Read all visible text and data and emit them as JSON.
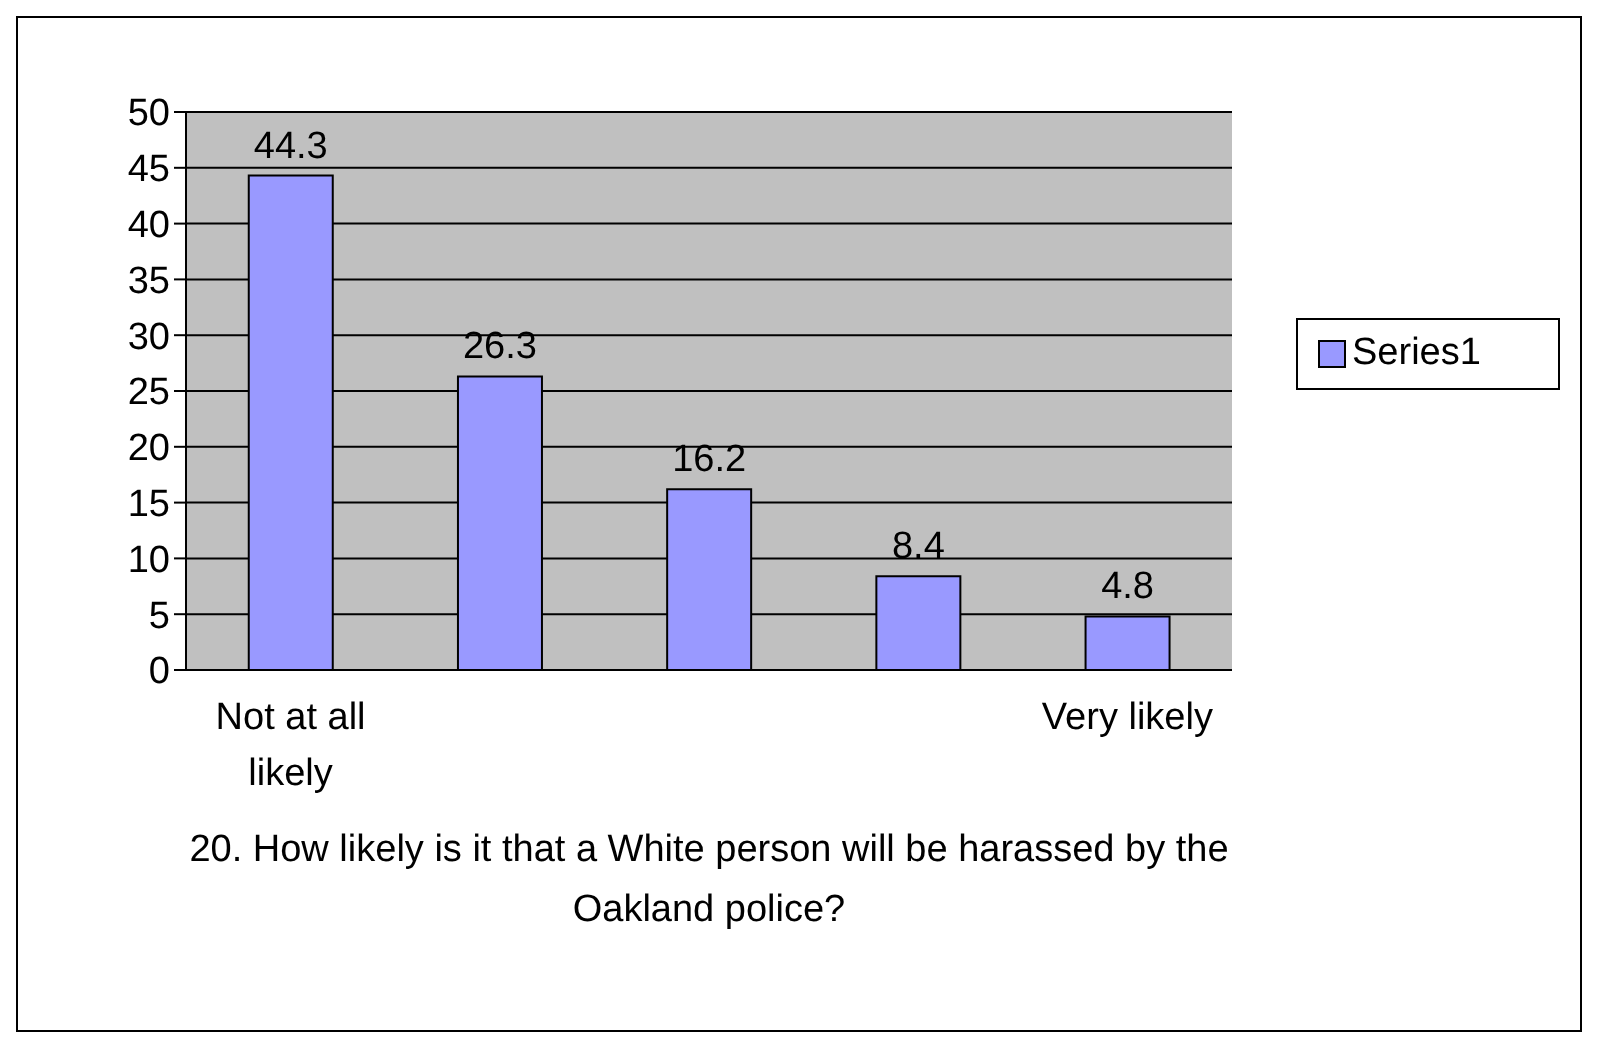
{
  "chart_data": {
    "type": "bar",
    "xlabel": "20. How likely is it that a White person will be harassed by the Oakland police?",
    "categories": [
      "Not at all likely",
      null,
      null,
      null,
      "Very likely"
    ],
    "series": [
      {
        "name": "Series1",
        "color": "#9999ff",
        "values": [
          44.3,
          26.3,
          16.2,
          8.4,
          4.8
        ]
      }
    ],
    "ylim": [
      0,
      50
    ],
    "yticks": [
      0,
      5,
      10,
      15,
      20,
      25,
      30,
      35,
      40,
      45,
      50
    ],
    "grid": "y",
    "legend": "right",
    "data_labels": true
  }
}
